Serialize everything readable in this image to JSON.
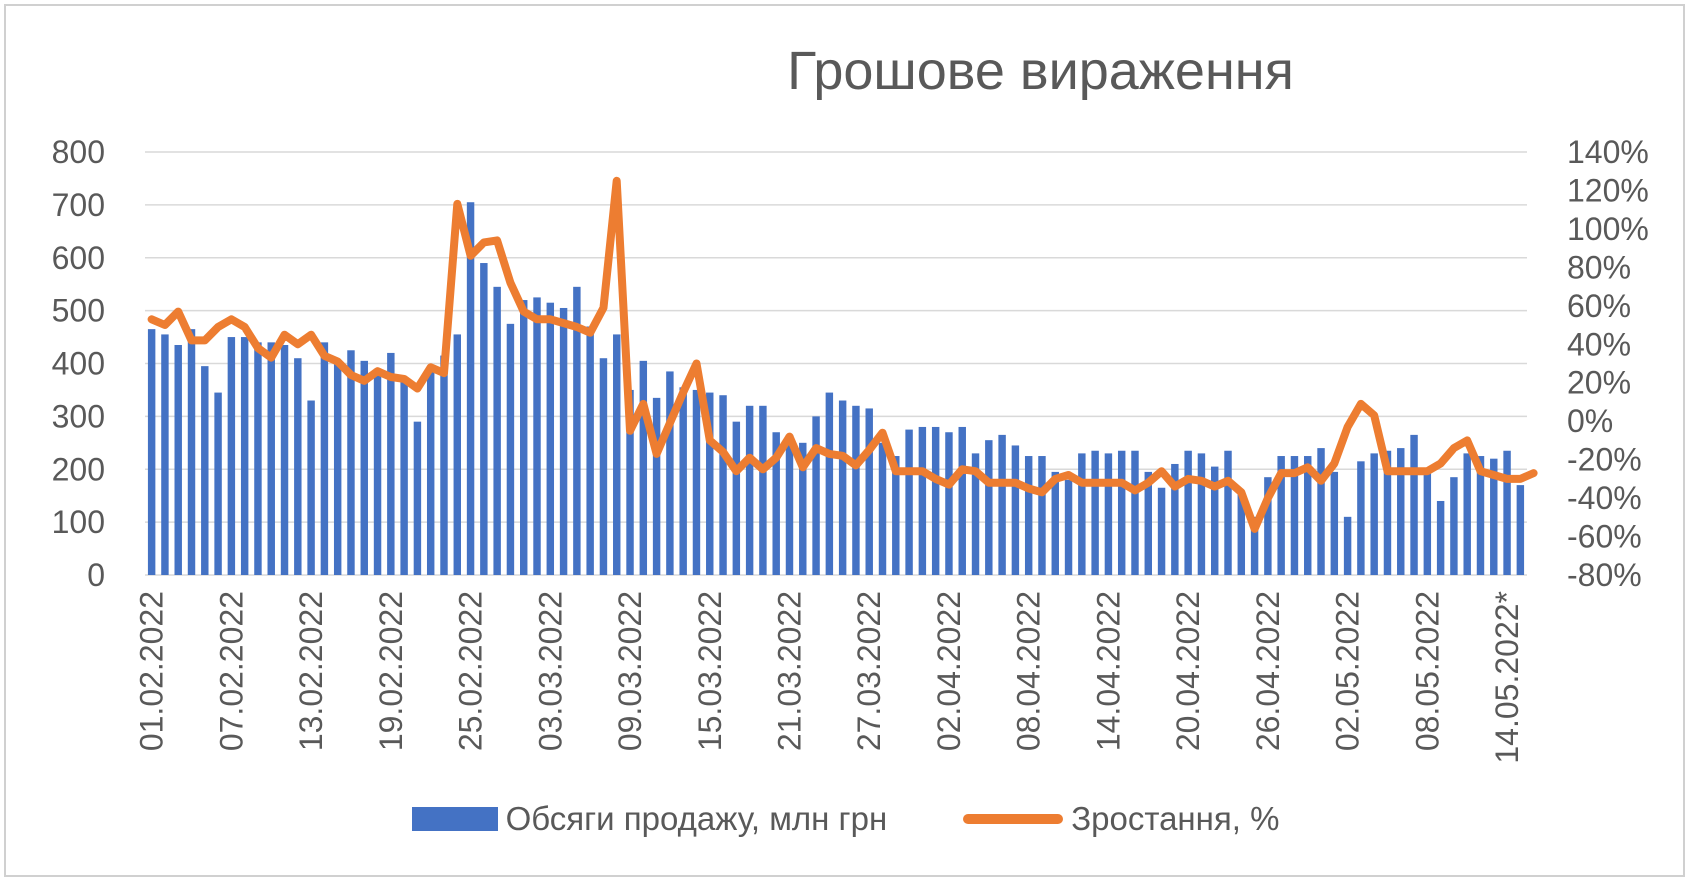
{
  "chart_data": {
    "type": "bar",
    "title": "Грошове вираження",
    "left_axis": {
      "ylim": [
        0,
        800
      ],
      "ticks": [
        "0",
        "100",
        "200",
        "300",
        "400",
        "500",
        "600",
        "700",
        "800"
      ]
    },
    "right_axis": {
      "ylim": [
        -0.8,
        1.4
      ],
      "ticks": [
        "-80%",
        "-60%",
        "-40%",
        "-20%",
        "0%",
        "20%",
        "40%",
        "60%",
        "80%",
        "100%",
        "120%",
        "140%"
      ]
    },
    "x_tick_labels": [
      "01.02.2022",
      "07.02.2022",
      "13.02.2022",
      "19.02.2022",
      "25.02.2022",
      "03.03.2022",
      "09.03.2022",
      "15.03.2022",
      "21.03.2022",
      "27.03.2022",
      "02.04.2022",
      "08.04.2022",
      "14.04.2022",
      "20.04.2022",
      "26.04.2022",
      "02.05.2022",
      "08.05.2022",
      "14.05.2022*"
    ],
    "series": [
      {
        "name": "Обсяги продажу, млн грн",
        "kind": "bar",
        "color": "#4472C4",
        "values": [
          465,
          455,
          435,
          465,
          395,
          345,
          450,
          450,
          440,
          440,
          435,
          410,
          330,
          440,
          400,
          425,
          405,
          390,
          420,
          370,
          290,
          385,
          415,
          455,
          705,
          590,
          545,
          475,
          520,
          525,
          515,
          505,
          545,
          470,
          410,
          455,
          350,
          405,
          335,
          385,
          355,
          350,
          345,
          340,
          290,
          320,
          320,
          270,
          265,
          250,
          300,
          345,
          330,
          320,
          315,
          250,
          225,
          275,
          280,
          280,
          270,
          280,
          230,
          255,
          265,
          245,
          225,
          225,
          195,
          180,
          230,
          235,
          230,
          235,
          235,
          195,
          165,
          210,
          235,
          230,
          205,
          235,
          155,
          110,
          185,
          225,
          225,
          225,
          240,
          195,
          110,
          215,
          230,
          235,
          240,
          265,
          195,
          140,
          185,
          230,
          225,
          220,
          235,
          170
        ]
      },
      {
        "name": "Зростання, %",
        "kind": "line",
        "color": "#ED7D31",
        "values": [
          0.53,
          0.5,
          0.57,
          0.42,
          0.42,
          0.49,
          0.53,
          0.49,
          0.38,
          0.33,
          0.45,
          0.4,
          0.45,
          0.34,
          0.31,
          0.24,
          0.21,
          0.26,
          0.23,
          0.22,
          0.17,
          0.28,
          0.25,
          1.13,
          0.86,
          0.93,
          0.94,
          0.72,
          0.57,
          0.53,
          0.53,
          0.51,
          0.49,
          0.46,
          0.59,
          1.25,
          -0.05,
          0.09,
          -0.17,
          -0.01,
          0.15,
          0.3,
          -0.1,
          -0.16,
          -0.26,
          -0.19,
          -0.25,
          -0.19,
          -0.08,
          -0.24,
          -0.14,
          -0.17,
          -0.18,
          -0.23,
          -0.15,
          -0.06,
          -0.26,
          -0.26,
          -0.26,
          -0.3,
          -0.33,
          -0.25,
          -0.26,
          -0.32,
          -0.32,
          -0.32,
          -0.35,
          -0.37,
          -0.3,
          -0.28,
          -0.32,
          -0.32,
          -0.32,
          -0.32,
          -0.36,
          -0.32,
          -0.26,
          -0.34,
          -0.3,
          -0.31,
          -0.34,
          -0.31,
          -0.37,
          -0.56,
          -0.4,
          -0.27,
          -0.27,
          -0.24,
          -0.31,
          -0.22,
          -0.03,
          0.09,
          0.03,
          -0.26,
          -0.26,
          -0.26,
          -0.26,
          -0.22,
          -0.14,
          -0.1,
          -0.26,
          -0.28,
          -0.3,
          -0.3,
          -0.27
        ]
      }
    ],
    "legend": {
      "placement": "bottom",
      "entries": [
        "Обсяги продажу, млн грн",
        "Зростання, %"
      ]
    },
    "grid": true
  }
}
